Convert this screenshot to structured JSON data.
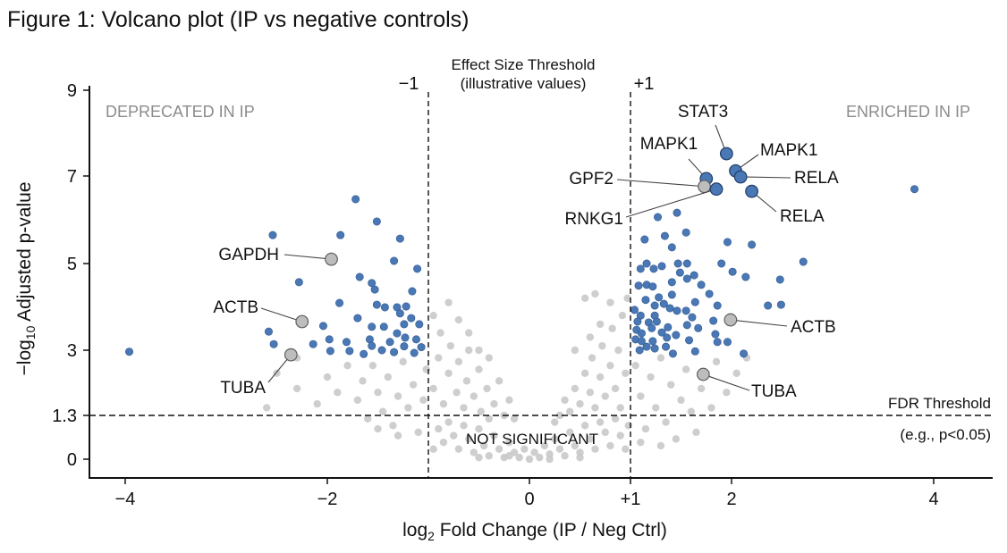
{
  "chart_data": {
    "type": "scatter",
    "title": "Figure 1: Volcano plot (IP vs negative controls)",
    "xlabel": {
      "base": "log",
      "sub": "2",
      "rest": " Fold Change (IP / Neg Ctrl)"
    },
    "ylabel": {
      "base": "−log",
      "sub": "10",
      "rest": " Adjusted p-value"
    },
    "xlim": [
      -4.4,
      4.6
    ],
    "ylim": [
      0,
      9
    ],
    "x_ticks": [
      {
        "v": -4,
        "label": "−4"
      },
      {
        "v": -2,
        "label": "−2"
      },
      {
        "v": 0,
        "label": "0"
      },
      {
        "v": 1,
        "label": "+1"
      },
      {
        "v": 2,
        "label": "2"
      },
      {
        "v": 4,
        "label": "4"
      }
    ],
    "y_ticks": [
      {
        "v": 9,
        "label": "9"
      },
      {
        "v": 7,
        "label": "7"
      },
      {
        "v": 5,
        "label": "5"
      },
      {
        "v": 3,
        "label": "3"
      },
      {
        "v": 1.3,
        "label": "1.3"
      },
      {
        "v": 0,
        "label": "0"
      }
    ],
    "grid": false,
    "thresholds": {
      "effect_size": {
        "values": [
          -1,
          1
        ],
        "neg_label": "−1",
        "pos_label": "+1",
        "title": "Effect Size Threshold",
        "subtitle": "(illustrative values)"
      },
      "fdr": {
        "value": 1.3,
        "title": "FDR Threshold",
        "subtitle": "(e.g., p<0.05)"
      }
    },
    "region_labels": {
      "left": "DEPRECATED IN IP",
      "right": "ENRICHED IN IP",
      "center": "NOT SIGNIFICANT"
    },
    "colors": {
      "significant": "#4a78b5",
      "significant_edge": "#2e5790",
      "not_significant": "#c9c9c9",
      "label_gray": "#bdbdbd",
      "region_label": "#8c8c8c"
    },
    "labeled_points": [
      {
        "name": "STAT3",
        "x": 1.95,
        "y": 7.52,
        "group": "significant"
      },
      {
        "name": "MAPK1",
        "x": 2.04,
        "y": 7.12,
        "group": "significant"
      },
      {
        "name": "RELA",
        "x": 2.09,
        "y": 6.98,
        "group": "significant"
      },
      {
        "name": "MAPK1",
        "x": 1.75,
        "y": 6.94,
        "group": "significant"
      },
      {
        "name": "GPF2",
        "x": 1.73,
        "y": 6.76,
        "group": "not_significant"
      },
      {
        "name": "RNKG1",
        "x": 1.85,
        "y": 6.7,
        "group": "significant"
      },
      {
        "name": "RELA",
        "x": 2.2,
        "y": 6.65,
        "group": "significant"
      },
      {
        "name": "GAPDH",
        "x": -1.96,
        "y": 5.1,
        "group": "not_significant"
      },
      {
        "name": "ACTB",
        "x": -2.25,
        "y": 3.66,
        "group": "not_significant"
      },
      {
        "name": "TUBA",
        "x": -2.36,
        "y": 2.88,
        "group": "not_significant"
      },
      {
        "name": "ACTB",
        "x": 1.99,
        "y": 3.7,
        "group": "not_significant"
      },
      {
        "name": "TUBA",
        "x": 1.72,
        "y": 2.37,
        "group": "not_significant"
      }
    ],
    "significant_points": [
      [
        -3.96,
        2.96
      ],
      [
        3.81,
        6.7
      ],
      [
        -1.72,
        6.47
      ],
      [
        -2.54,
        5.65
      ],
      [
        -1.87,
        5.65
      ],
      [
        -1.51,
        5.96
      ],
      [
        -1.28,
        5.57
      ],
      [
        -1.34,
        5.06
      ],
      [
        -1.11,
        4.88
      ],
      [
        -2.28,
        4.57
      ],
      [
        -1.68,
        4.69
      ],
      [
        -1.56,
        4.55
      ],
      [
        -1.53,
        4.4
      ],
      [
        -1.16,
        4.36
      ],
      [
        -1.88,
        4.09
      ],
      [
        -1.51,
        4.05
      ],
      [
        -1.43,
        3.99
      ],
      [
        -1.31,
        3.99
      ],
      [
        -1.22,
        4.01
      ],
      [
        -1.28,
        3.85
      ],
      [
        -1.7,
        3.74
      ],
      [
        -1.17,
        3.74
      ],
      [
        -1.56,
        3.54
      ],
      [
        -1.44,
        3.54
      ],
      [
        -1.31,
        3.39
      ],
      [
        -1.24,
        3.6
      ],
      [
        -1.09,
        3.6
      ],
      [
        -2.58,
        3.43
      ],
      [
        -2.04,
        3.56
      ],
      [
        -2.53,
        3.14
      ],
      [
        -2.14,
        3.14
      ],
      [
        -1.98,
        3.25
      ],
      [
        -1.81,
        3.19
      ],
      [
        -1.58,
        3.25
      ],
      [
        -1.56,
        3.1
      ],
      [
        -1.38,
        3.19
      ],
      [
        -1.23,
        3.29
      ],
      [
        -1.12,
        3.25
      ],
      [
        -1.78,
        2.98
      ],
      [
        -1.64,
        2.9
      ],
      [
        -1.46,
        3.0
      ],
      [
        -1.34,
        2.95
      ],
      [
        -1.24,
        3.09
      ],
      [
        -1.14,
        2.93
      ],
      [
        -1.07,
        3.07
      ],
      [
        -1.97,
        2.98
      ],
      [
        1.46,
        6.16
      ],
      [
        1.27,
        6.06
      ],
      [
        1.55,
        5.71
      ],
      [
        1.14,
        5.55
      ],
      [
        1.34,
        5.63
      ],
      [
        1.41,
        5.37
      ],
      [
        1.96,
        5.49
      ],
      [
        2.2,
        5.43
      ],
      [
        2.71,
        5.04
      ],
      [
        1.16,
        5.0
      ],
      [
        1.1,
        4.88
      ],
      [
        1.23,
        4.88
      ],
      [
        1.31,
        4.94
      ],
      [
        1.47,
        5.0
      ],
      [
        1.56,
        5.0
      ],
      [
        1.49,
        4.79
      ],
      [
        1.63,
        4.73
      ],
      [
        1.56,
        4.65
      ],
      [
        1.9,
        5.0
      ],
      [
        2.01,
        4.81
      ],
      [
        2.14,
        4.69
      ],
      [
        2.48,
        4.63
      ],
      [
        1.41,
        4.57
      ],
      [
        1.08,
        4.49
      ],
      [
        1.16,
        4.51
      ],
      [
        1.22,
        4.47
      ],
      [
        1.7,
        4.51
      ],
      [
        1.78,
        4.3
      ],
      [
        1.41,
        4.28
      ],
      [
        1.28,
        4.22
      ],
      [
        1.15,
        4.16
      ],
      [
        1.33,
        4.07
      ],
      [
        1.64,
        4.11
      ],
      [
        1.24,
        4.03
      ],
      [
        1.39,
        3.97
      ],
      [
        1.46,
        3.91
      ],
      [
        1.55,
        3.91
      ],
      [
        1.86,
        4.03
      ],
      [
        2.36,
        4.03
      ],
      [
        2.49,
        4.05
      ],
      [
        1.04,
        3.93
      ],
      [
        1.1,
        3.8
      ],
      [
        1.24,
        3.8
      ],
      [
        1.61,
        3.76
      ],
      [
        1.07,
        3.66
      ],
      [
        1.18,
        3.64
      ],
      [
        1.26,
        3.66
      ],
      [
        1.56,
        3.58
      ],
      [
        1.82,
        3.68
      ],
      [
        1.21,
        3.51
      ],
      [
        1.37,
        3.53
      ],
      [
        1.67,
        3.51
      ],
      [
        1.06,
        3.47
      ],
      [
        1.11,
        3.39
      ],
      [
        1.31,
        3.41
      ],
      [
        1.45,
        3.35
      ],
      [
        1.84,
        3.37
      ],
      [
        1.05,
        3.25
      ],
      [
        1.11,
        3.21
      ],
      [
        1.22,
        3.21
      ],
      [
        1.36,
        3.29
      ],
      [
        1.58,
        3.23
      ],
      [
        1.86,
        3.19
      ],
      [
        1.96,
        3.19
      ],
      [
        1.16,
        3.08
      ],
      [
        1.24,
        3.04
      ],
      [
        1.35,
        3.08
      ],
      [
        1.09,
        3.0
      ],
      [
        1.42,
        2.91
      ],
      [
        1.64,
        2.97
      ],
      [
        2.12,
        2.91
      ]
    ],
    "not_significant_points": [
      [
        -0.9,
        0.9
      ],
      [
        -0.85,
        0.5
      ],
      [
        -0.8,
        1.1
      ],
      [
        -0.75,
        0.7
      ],
      [
        -0.7,
        0.3
      ],
      [
        -0.65,
        1.0
      ],
      [
        -0.6,
        0.6
      ],
      [
        -0.55,
        0.2
      ],
      [
        -0.5,
        0.9
      ],
      [
        -0.45,
        0.4
      ],
      [
        -0.4,
        0.1
      ],
      [
        -0.35,
        0.7
      ],
      [
        -0.3,
        0.3
      ],
      [
        -0.25,
        0.05
      ],
      [
        -0.2,
        0.5
      ],
      [
        -0.15,
        0.2
      ],
      [
        -0.1,
        0.05
      ],
      [
        -0.05,
        0.3
      ],
      [
        0,
        0
      ],
      [
        0.05,
        0.2
      ],
      [
        0.1,
        0.05
      ],
      [
        0.15,
        0.4
      ],
      [
        0.2,
        0.15
      ],
      [
        0.25,
        0.6
      ],
      [
        0.3,
        0.3
      ],
      [
        0.35,
        0.1
      ],
      [
        0.4,
        0.8
      ],
      [
        0.45,
        0.4
      ],
      [
        0.5,
        0.2
      ],
      [
        0.55,
        1.0
      ],
      [
        0.6,
        0.6
      ],
      [
        0.65,
        0.3
      ],
      [
        0.7,
        1.1
      ],
      [
        0.75,
        0.8
      ],
      [
        0.8,
        0.4
      ],
      [
        0.85,
        1.2
      ],
      [
        0.9,
        0.7
      ],
      [
        0.95,
        0.3
      ],
      [
        -0.95,
        0.3
      ],
      [
        0.98,
        1.0
      ],
      [
        -0.5,
        0.05
      ],
      [
        0.5,
        0.05
      ],
      [
        -0.2,
        0.1
      ],
      [
        0.2,
        0.0
      ],
      [
        -0.95,
        2.0
      ],
      [
        -0.9,
        2.8
      ],
      [
        -0.88,
        3.4
      ],
      [
        -0.85,
        1.6
      ],
      [
        -0.8,
        2.4
      ],
      [
        -0.78,
        3.1
      ],
      [
        -0.72,
        1.9
      ],
      [
        -0.7,
        2.7
      ],
      [
        -0.65,
        1.5
      ],
      [
        -0.62,
        2.2
      ],
      [
        -0.6,
        3.0
      ],
      [
        -0.55,
        1.8
      ],
      [
        -0.5,
        2.5
      ],
      [
        -0.48,
        1.4
      ],
      [
        -0.42,
        2.0
      ],
      [
        -0.4,
        2.8
      ],
      [
        -0.35,
        1.6
      ],
      [
        -0.3,
        2.2
      ],
      [
        -0.25,
        1.3
      ],
      [
        -0.2,
        1.7
      ],
      [
        -0.15,
        1.2
      ],
      [
        -0.7,
        3.7
      ],
      [
        -0.8,
        4.1
      ],
      [
        -0.6,
        3.4
      ],
      [
        -0.5,
        3.0
      ],
      [
        -0.95,
        3.8
      ],
      [
        -0.4,
        1.2
      ],
      [
        0.3,
        1.3
      ],
      [
        0.35,
        1.7
      ],
      [
        0.4,
        1.4
      ],
      [
        0.45,
        2.0
      ],
      [
        0.5,
        1.6
      ],
      [
        0.55,
        2.4
      ],
      [
        0.6,
        1.9
      ],
      [
        0.62,
        2.8
      ],
      [
        0.65,
        1.5
      ],
      [
        0.7,
        2.3
      ],
      [
        0.72,
        3.1
      ],
      [
        0.75,
        1.8
      ],
      [
        0.8,
        2.6
      ],
      [
        0.82,
        3.5
      ],
      [
        0.85,
        2.0
      ],
      [
        0.88,
        3.0
      ],
      [
        0.9,
        1.5
      ],
      [
        0.92,
        3.8
      ],
      [
        0.95,
        2.4
      ],
      [
        0.97,
        4.2
      ],
      [
        0.6,
        3.3
      ],
      [
        0.55,
        4.2
      ],
      [
        0.65,
        4.3
      ],
      [
        0.8,
        4.1
      ],
      [
        0.7,
        3.6
      ],
      [
        0.25,
        1.1
      ],
      [
        0.45,
        3.0
      ],
      [
        -2.5,
        2.4
      ],
      [
        -2.3,
        2.0
      ],
      [
        -2.1,
        1.6
      ],
      [
        -2.0,
        2.3
      ],
      [
        -1.9,
        1.9
      ],
      [
        -1.8,
        2.6
      ],
      [
        -1.7,
        1.7
      ],
      [
        -1.65,
        2.2
      ],
      [
        -1.6,
        1.2
      ],
      [
        -1.55,
        2.6
      ],
      [
        -1.5,
        1.9
      ],
      [
        -1.45,
        1.4
      ],
      [
        -1.4,
        2.3
      ],
      [
        -1.35,
        1.0
      ],
      [
        -1.3,
        1.8
      ],
      [
        -1.25,
        2.7
      ],
      [
        -1.2,
        1.5
      ],
      [
        -1.15,
        2.1
      ],
      [
        -1.1,
        0.8
      ],
      [
        -1.05,
        1.7
      ],
      [
        -1.02,
        2.5
      ],
      [
        -1.3,
        0.7
      ],
      [
        -1.5,
        0.9
      ],
      [
        -2.3,
        2.8
      ],
      [
        -2.6,
        1.5
      ],
      [
        1.05,
        2.6
      ],
      [
        1.1,
        1.8
      ],
      [
        1.15,
        0.9
      ],
      [
        1.2,
        2.3
      ],
      [
        1.25,
        1.5
      ],
      [
        1.3,
        2.8
      ],
      [
        1.35,
        1.1
      ],
      [
        1.4,
        2.1
      ],
      [
        1.45,
        0.6
      ],
      [
        1.5,
        1.7
      ],
      [
        1.55,
        2.5
      ],
      [
        1.6,
        1.4
      ],
      [
        1.65,
        0.8
      ],
      [
        1.7,
        2.0
      ],
      [
        1.8,
        1.5
      ],
      [
        1.85,
        2.7
      ],
      [
        1.95,
        1.9
      ],
      [
        2.05,
        2.4
      ],
      [
        2.15,
        2.8
      ],
      [
        1.1,
        0.5
      ],
      [
        1.3,
        0.4
      ]
    ]
  }
}
